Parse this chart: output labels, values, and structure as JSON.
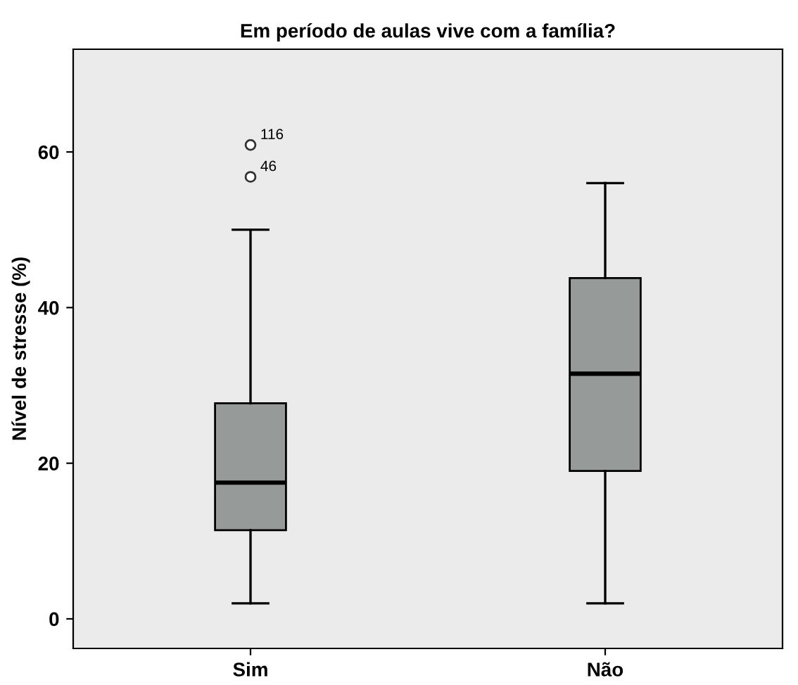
{
  "chart_data": {
    "type": "box",
    "title": "Em período de aulas vive com a família?",
    "ylabel": "Nível de stresse (%)",
    "categories": [
      "Sim",
      "Não"
    ],
    "boxes": [
      {
        "low": 2,
        "q1": 11.4,
        "median": 17.5,
        "q3": 27.7,
        "high": 50,
        "outliers": [
          60.9,
          56.8
        ]
      },
      {
        "low": 2,
        "q1": 19,
        "median": 31.5,
        "q3": 43.8,
        "high": 56
      }
    ],
    "color": "#969a98",
    "ylim": [
      -3.8,
      73.2
    ],
    "yticks": [
      0,
      20,
      40,
      60
    ],
    "grid": false,
    "annotations": [
      "116",
      "46"
    ]
  }
}
